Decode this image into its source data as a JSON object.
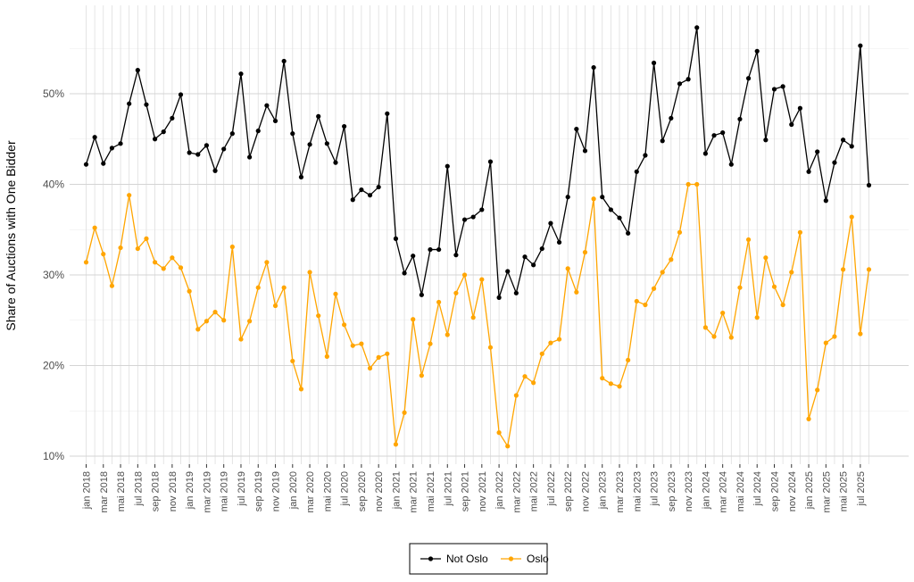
{
  "chart_data": {
    "type": "line",
    "ylabel": "Share of Auctions with One Bidder",
    "xlabel": "",
    "ylim": [
      9.5,
      60
    ],
    "y_ticks": [
      10,
      20,
      30,
      40,
      50
    ],
    "y_tick_labels": [
      "10%",
      "20%",
      "30%",
      "40%",
      "50%"
    ],
    "grid": true,
    "legend_position": "bottom",
    "x_tick_labels": [
      "jan 2018",
      "mar 2018",
      "mai 2018",
      "jul 2018",
      "sep 2018",
      "nov 2018",
      "jan 2019",
      "mar 2019",
      "mai 2019",
      "jul 2019",
      "sep 2019",
      "nov 2019",
      "jan 2020",
      "mar 2020",
      "mai 2020",
      "jul 2020",
      "sep 2020",
      "nov 2020",
      "jan 2021",
      "mar 2021",
      "mai 2021",
      "jul 2021",
      "sep 2021",
      "nov 2021",
      "jan 2022",
      "mar 2022",
      "mai 2022",
      "jul 2022",
      "sep 2022",
      "nov 2022",
      "jan 2023",
      "mar 2023",
      "mai 2023",
      "jul 2023",
      "sep 2023",
      "nov 2023",
      "jan 2024",
      "mar 2024",
      "mai 2024",
      "jul 2024",
      "sep 2024",
      "nov 2024",
      "jan 2025",
      "mar 2025",
      "mai 2025",
      "jul 2025"
    ],
    "x_start": "2018-01",
    "series": [
      {
        "name": "Not Oslo",
        "color": "#000000",
        "values": [
          42.2,
          45.2,
          42.3,
          44.0,
          44.5,
          48.9,
          52.6,
          48.8,
          45.0,
          45.8,
          47.3,
          49.9,
          43.5,
          43.3,
          44.3,
          41.5,
          43.9,
          45.6,
          52.2,
          43.0,
          45.9,
          48.7,
          47.0,
          53.6,
          45.6,
          40.8,
          44.4,
          47.5,
          44.5,
          42.4,
          46.4,
          38.3,
          39.4,
          38.8,
          39.7,
          47.8,
          34.0,
          30.2,
          32.1,
          27.8,
          32.8,
          32.8,
          42.0,
          32.2,
          36.1,
          36.4,
          37.2,
          42.5,
          27.5,
          30.4,
          28.0,
          32.0,
          31.1,
          32.9,
          35.7,
          33.6,
          38.6,
          46.1,
          43.7,
          52.9,
          38.6,
          37.2,
          36.3,
          34.6,
          41.4,
          43.2,
          53.4,
          44.8,
          47.3,
          51.1,
          51.6,
          57.3,
          43.4,
          45.4,
          45.7,
          42.2,
          47.2,
          51.7,
          54.7,
          44.9,
          50.5,
          50.8,
          46.6,
          48.4,
          41.4,
          43.6,
          38.2,
          42.4,
          44.9,
          44.2,
          55.3,
          39.9
        ]
      },
      {
        "name": "Oslo",
        "color": "#FFA500",
        "values": [
          31.4,
          35.2,
          32.3,
          28.8,
          33.0,
          38.8,
          32.9,
          34.0,
          31.4,
          30.7,
          31.9,
          30.8,
          28.2,
          24.0,
          24.9,
          25.9,
          25.0,
          33.1,
          22.9,
          24.9,
          28.6,
          31.4,
          26.6,
          28.6,
          20.5,
          17.4,
          30.3,
          25.5,
          21.0,
          27.9,
          24.5,
          22.2,
          22.4,
          19.7,
          20.9,
          21.3,
          11.3,
          14.8,
          25.1,
          18.9,
          22.4,
          27.0,
          23.4,
          28.0,
          30.0,
          25.3,
          29.5,
          22.0,
          12.6,
          11.1,
          16.7,
          18.8,
          18.1,
          21.3,
          22.5,
          22.9,
          30.7,
          28.1,
          32.5,
          38.4,
          18.6,
          18.0,
          17.7,
          20.6,
          27.1,
          26.7,
          28.5,
          30.3,
          31.7,
          34.7,
          40.0,
          40.0,
          24.2,
          23.2,
          25.8,
          23.1,
          28.6,
          33.9,
          25.3,
          31.9,
          28.7,
          26.7,
          30.3,
          34.7,
          14.1,
          17.3,
          22.5,
          23.2,
          30.6,
          36.4,
          23.5,
          30.6
        ]
      }
    ]
  }
}
